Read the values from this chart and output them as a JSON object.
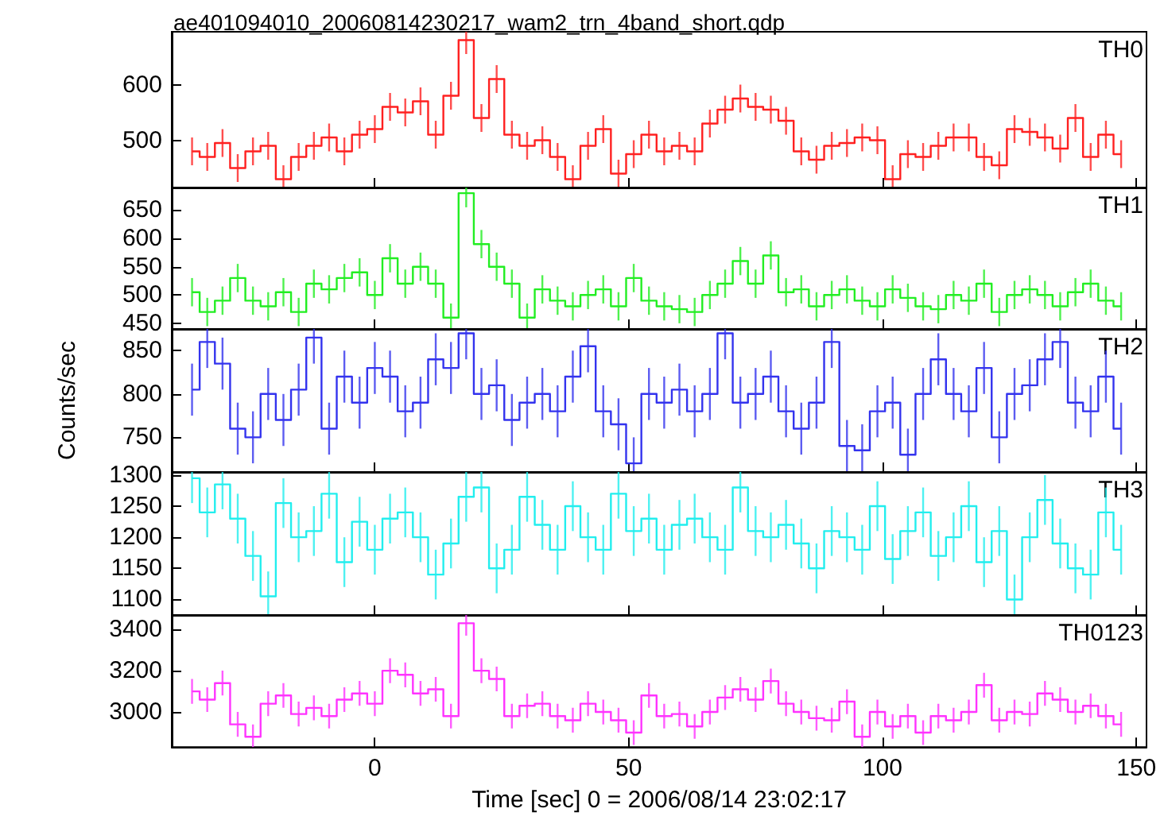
{
  "chart_data": [
    {
      "type": "step",
      "title": "ae401094010_20060814230217_wam2_trn_4band_short.qdp",
      "annotations": [
        "TH0"
      ],
      "color": "#ff2020",
      "tick_labels": "y",
      "xlim": [
        -40,
        152
      ],
      "xticks": [
        0,
        50,
        100,
        150
      ],
      "ylim": [
        415,
        695
      ],
      "yticks": [
        500,
        600
      ],
      "x": [
        -36,
        -33,
        -30,
        -27,
        -24,
        -21,
        -18,
        -15,
        -12,
        -9,
        -6,
        -3,
        0,
        3,
        6,
        9,
        12,
        15,
        18,
        21,
        24,
        27,
        30,
        33,
        36,
        39,
        42,
        45,
        48,
        51,
        54,
        57,
        60,
        63,
        66,
        69,
        72,
        75,
        78,
        81,
        84,
        87,
        90,
        93,
        96,
        99,
        102,
        105,
        108,
        111,
        114,
        117,
        120,
        123,
        126,
        129,
        132,
        135,
        138,
        141,
        144,
        147
      ],
      "values": [
        480,
        470,
        495,
        450,
        480,
        490,
        430,
        470,
        490,
        505,
        480,
        510,
        520,
        560,
        550,
        570,
        510,
        580,
        680,
        540,
        610,
        510,
        490,
        500,
        470,
        430,
        490,
        520,
        440,
        475,
        510,
        480,
        490,
        480,
        530,
        555,
        575,
        560,
        555,
        535,
        480,
        465,
        490,
        495,
        505,
        500,
        430,
        475,
        470,
        490,
        505,
        505,
        470,
        455,
        520,
        515,
        505,
        485,
        540,
        470,
        510,
        475
      ],
      "errors": [
        25,
        25,
        25,
        25,
        25,
        25,
        25,
        25,
        25,
        25,
        25,
        25,
        25,
        25,
        25,
        25,
        25,
        25,
        25,
        25,
        25,
        25,
        25,
        25,
        25,
        25,
        25,
        25,
        25,
        25,
        25,
        25,
        25,
        25,
        25,
        25,
        25,
        25,
        25,
        25,
        25,
        25,
        25,
        25,
        25,
        25,
        25,
        25,
        25,
        25,
        25,
        25,
        25,
        25,
        25,
        25,
        25,
        25,
        25,
        25,
        25,
        25
      ]
    },
    {
      "type": "step",
      "annotations": [
        "TH1"
      ],
      "color": "#22ee22",
      "tick_labels": "y",
      "xlim": [
        -40,
        152
      ],
      "xticks": [
        0,
        50,
        100,
        150
      ],
      "ylim": [
        440,
        690
      ],
      "yticks": [
        450,
        500,
        550,
        600,
        650
      ],
      "x": [
        -36,
        -33,
        -30,
        -27,
        -24,
        -21,
        -18,
        -15,
        -12,
        -9,
        -6,
        -3,
        0,
        3,
        6,
        9,
        12,
        15,
        18,
        21,
        24,
        27,
        30,
        33,
        36,
        39,
        42,
        45,
        48,
        51,
        54,
        57,
        60,
        63,
        66,
        69,
        72,
        75,
        78,
        81,
        84,
        87,
        90,
        93,
        96,
        99,
        102,
        105,
        108,
        111,
        114,
        117,
        120,
        123,
        126,
        129,
        132,
        135,
        138,
        141,
        144,
        147
      ],
      "values": [
        505,
        470,
        490,
        530,
        490,
        480,
        505,
        470,
        520,
        510,
        530,
        540,
        500,
        565,
        520,
        550,
        520,
        460,
        680,
        590,
        550,
        520,
        460,
        510,
        490,
        480,
        500,
        510,
        480,
        530,
        490,
        480,
        475,
        470,
        500,
        520,
        560,
        520,
        570,
        505,
        510,
        480,
        500,
        510,
        490,
        480,
        510,
        495,
        480,
        475,
        500,
        490,
        520,
        470,
        500,
        510,
        500,
        480,
        505,
        520,
        490,
        480
      ],
      "errors": [
        25,
        25,
        25,
        25,
        25,
        25,
        25,
        25,
        25,
        25,
        25,
        25,
        25,
        25,
        25,
        25,
        25,
        25,
        25,
        25,
        25,
        25,
        25,
        25,
        25,
        25,
        25,
        25,
        25,
        25,
        25,
        25,
        25,
        25,
        25,
        25,
        25,
        25,
        25,
        25,
        25,
        25,
        25,
        25,
        25,
        25,
        25,
        25,
        25,
        25,
        25,
        25,
        25,
        25,
        25,
        25,
        25,
        25,
        25,
        25,
        25,
        25
      ]
    },
    {
      "type": "step",
      "annotations": [
        "TH2"
      ],
      "ylabel": "Counts/sec",
      "color": "#3333ee",
      "tick_labels": "y",
      "xlim": [
        -40,
        152
      ],
      "xticks": [
        0,
        50,
        100,
        150
      ],
      "ylim": [
        710,
        875
      ],
      "yticks": [
        750,
        800,
        850
      ],
      "x": [
        -36,
        -33,
        -30,
        -27,
        -24,
        -21,
        -18,
        -15,
        -12,
        -9,
        -6,
        -3,
        0,
        3,
        6,
        9,
        12,
        15,
        18,
        21,
        24,
        27,
        30,
        33,
        36,
        39,
        42,
        45,
        48,
        51,
        54,
        57,
        60,
        63,
        66,
        69,
        72,
        75,
        78,
        81,
        84,
        87,
        90,
        93,
        96,
        99,
        102,
        105,
        108,
        111,
        114,
        117,
        120,
        123,
        126,
        129,
        132,
        135,
        138,
        141,
        144,
        147
      ],
      "values": [
        805,
        860,
        835,
        760,
        750,
        800,
        770,
        805,
        865,
        760,
        820,
        790,
        830,
        820,
        780,
        790,
        840,
        830,
        870,
        800,
        810,
        770,
        790,
        800,
        780,
        820,
        855,
        780,
        765,
        720,
        800,
        790,
        805,
        780,
        800,
        870,
        790,
        800,
        820,
        780,
        760,
        790,
        860,
        740,
        735,
        780,
        790,
        730,
        800,
        840,
        800,
        780,
        830,
        750,
        800,
        810,
        840,
        860,
        790,
        780,
        820,
        760
      ],
      "errors": [
        30,
        30,
        30,
        30,
        30,
        30,
        30,
        30,
        30,
        30,
        30,
        30,
        30,
        30,
        30,
        30,
        30,
        30,
        30,
        30,
        30,
        30,
        30,
        30,
        30,
        30,
        30,
        30,
        30,
        30,
        30,
        30,
        30,
        30,
        30,
        30,
        30,
        30,
        30,
        30,
        30,
        30,
        30,
        30,
        30,
        30,
        30,
        30,
        30,
        30,
        30,
        30,
        30,
        30,
        30,
        30,
        30,
        30,
        30,
        30,
        30,
        30
      ]
    },
    {
      "type": "step",
      "annotations": [
        "TH3"
      ],
      "color": "#22eeee",
      "tick_labels": "y",
      "xlim": [
        -40,
        152
      ],
      "xticks": [
        0,
        50,
        100,
        150
      ],
      "ylim": [
        1075,
        1305
      ],
      "yticks": [
        1100,
        1150,
        1200,
        1250,
        1300
      ],
      "x": [
        -36,
        -33,
        -30,
        -27,
        -24,
        -21,
        -18,
        -15,
        -12,
        -9,
        -6,
        -3,
        0,
        3,
        6,
        9,
        12,
        15,
        18,
        21,
        24,
        27,
        30,
        33,
        36,
        39,
        42,
        45,
        48,
        51,
        54,
        57,
        60,
        63,
        66,
        69,
        72,
        75,
        78,
        81,
        84,
        87,
        90,
        93,
        96,
        99,
        102,
        105,
        108,
        111,
        114,
        117,
        120,
        123,
        126,
        129,
        132,
        135,
        138,
        141,
        144,
        147
      ],
      "values": [
        1295,
        1240,
        1285,
        1230,
        1170,
        1105,
        1255,
        1200,
        1210,
        1270,
        1160,
        1225,
        1180,
        1230,
        1240,
        1200,
        1140,
        1190,
        1265,
        1280,
        1150,
        1180,
        1265,
        1220,
        1180,
        1250,
        1200,
        1180,
        1270,
        1210,
        1230,
        1180,
        1220,
        1230,
        1200,
        1180,
        1280,
        1210,
        1200,
        1220,
        1190,
        1150,
        1210,
        1200,
        1180,
        1250,
        1165,
        1210,
        1240,
        1170,
        1200,
        1250,
        1160,
        1210,
        1100,
        1200,
        1260,
        1190,
        1150,
        1140,
        1240,
        1180
      ],
      "errors": [
        40,
        40,
        40,
        40,
        40,
        40,
        40,
        40,
        40,
        40,
        40,
        40,
        40,
        40,
        40,
        40,
        40,
        40,
        40,
        40,
        40,
        40,
        40,
        40,
        40,
        40,
        40,
        40,
        40,
        40,
        40,
        40,
        40,
        40,
        40,
        40,
        40,
        40,
        40,
        40,
        40,
        40,
        40,
        40,
        40,
        40,
        40,
        40,
        40,
        40,
        40,
        40,
        40,
        40,
        40,
        40,
        40,
        40,
        40,
        40,
        40,
        40
      ]
    },
    {
      "type": "step",
      "annotations": [
        "TH0123"
      ],
      "xlabel": "Time [sec] 0 = 2006/08/14 23:02:17",
      "color": "#ff33ff",
      "xlim": [
        -40,
        152
      ],
      "xticks": [
        0,
        50,
        100,
        150
      ],
      "ylim": [
        2830,
        3470
      ],
      "yticks": [
        3000,
        3200,
        3400
      ],
      "x": [
        -36,
        -33,
        -30,
        -27,
        -24,
        -21,
        -18,
        -15,
        -12,
        -9,
        -6,
        -3,
        0,
        3,
        6,
        9,
        12,
        15,
        18,
        21,
        24,
        27,
        30,
        33,
        36,
        39,
        42,
        45,
        48,
        51,
        54,
        57,
        60,
        63,
        66,
        69,
        72,
        75,
        78,
        81,
        84,
        87,
        90,
        93,
        96,
        99,
        102,
        105,
        108,
        111,
        114,
        117,
        120,
        123,
        126,
        129,
        132,
        135,
        138,
        141,
        144,
        147
      ],
      "values": [
        3100,
        3060,
        3140,
        2940,
        2880,
        3040,
        3080,
        2990,
        3020,
        2980,
        3060,
        3090,
        3040,
        3200,
        3180,
        3090,
        3110,
        2980,
        3430,
        3200,
        3160,
        2980,
        3030,
        3040,
        2980,
        2960,
        3040,
        3000,
        2960,
        2900,
        3080,
        2980,
        2990,
        2930,
        3000,
        3070,
        3110,
        3060,
        3150,
        3040,
        3000,
        2970,
        2960,
        3050,
        2880,
        3000,
        2930,
        2980,
        2900,
        2980,
        2960,
        3000,
        3130,
        2960,
        3000,
        2990,
        3090,
        3060,
        3000,
        3030,
        2980,
        2940
      ],
      "errors": [
        60,
        60,
        60,
        60,
        60,
        60,
        60,
        60,
        60,
        60,
        60,
        60,
        60,
        60,
        60,
        60,
        60,
        60,
        60,
        60,
        60,
        60,
        60,
        60,
        60,
        60,
        60,
        60,
        60,
        60,
        60,
        60,
        60,
        60,
        60,
        60,
        60,
        60,
        60,
        60,
        60,
        60,
        60,
        60,
        60,
        60,
        60,
        60,
        60,
        60,
        60,
        60,
        60,
        60,
        60,
        60,
        60,
        60,
        60,
        60,
        60,
        60
      ]
    }
  ]
}
